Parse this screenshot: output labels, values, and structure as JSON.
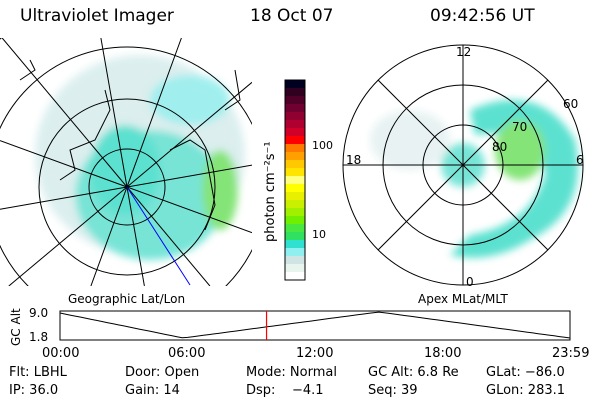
{
  "header": {
    "instrument": "Ultraviolet Imager",
    "date": "18 Oct 07",
    "time": "09:42:56 UT"
  },
  "left_map": {
    "label": "Geographic Lat/Lon"
  },
  "right_map": {
    "label": "Apex MLat/MLT",
    "mlt_labels": [
      "12",
      "18",
      "6",
      "0"
    ],
    "lat_labels": [
      "60",
      "70",
      "80"
    ]
  },
  "colorbar": {
    "label": "photon cm⁻²s⁻¹",
    "ticks": [
      "100",
      "10"
    ],
    "colors": [
      "#000020",
      "#300020",
      "#500028",
      "#700030",
      "#900030",
      "#b00030",
      "#d00028",
      "#ff0000",
      "#ff7800",
      "#ffa000",
      "#ffc800",
      "#ffe400",
      "#ffff80",
      "#ffff00",
      "#e8f000",
      "#c8f000",
      "#a0f000",
      "#70f000",
      "#48e840",
      "#30e060",
      "#30e0d0",
      "#90f0f0",
      "#d0e4e4",
      "#e8f4ee",
      "#ffffff"
    ]
  },
  "timeline": {
    "ylabel": "GC Alt",
    "yticks": [
      "9.0",
      "1.8"
    ],
    "xticks": [
      "00:00",
      "06:00",
      "12:00",
      "18:00",
      "23:59"
    ],
    "current_time_hours": 9.72,
    "marker_color": "#ff0000"
  },
  "info": {
    "filter": "Flt: LBHL",
    "door": "Door: Open",
    "mode": "Mode: Normal",
    "gc_alt": "GC Alt: 6.8 Re",
    "glat": "GLat: −86.0",
    "ip": "IP: 36.0",
    "gain": "Gain: 14",
    "dsp_label": "Dsp:",
    "dsp_value": "−4.1",
    "seq": "Seq: 39",
    "glon": "GLon: 283.1"
  }
}
